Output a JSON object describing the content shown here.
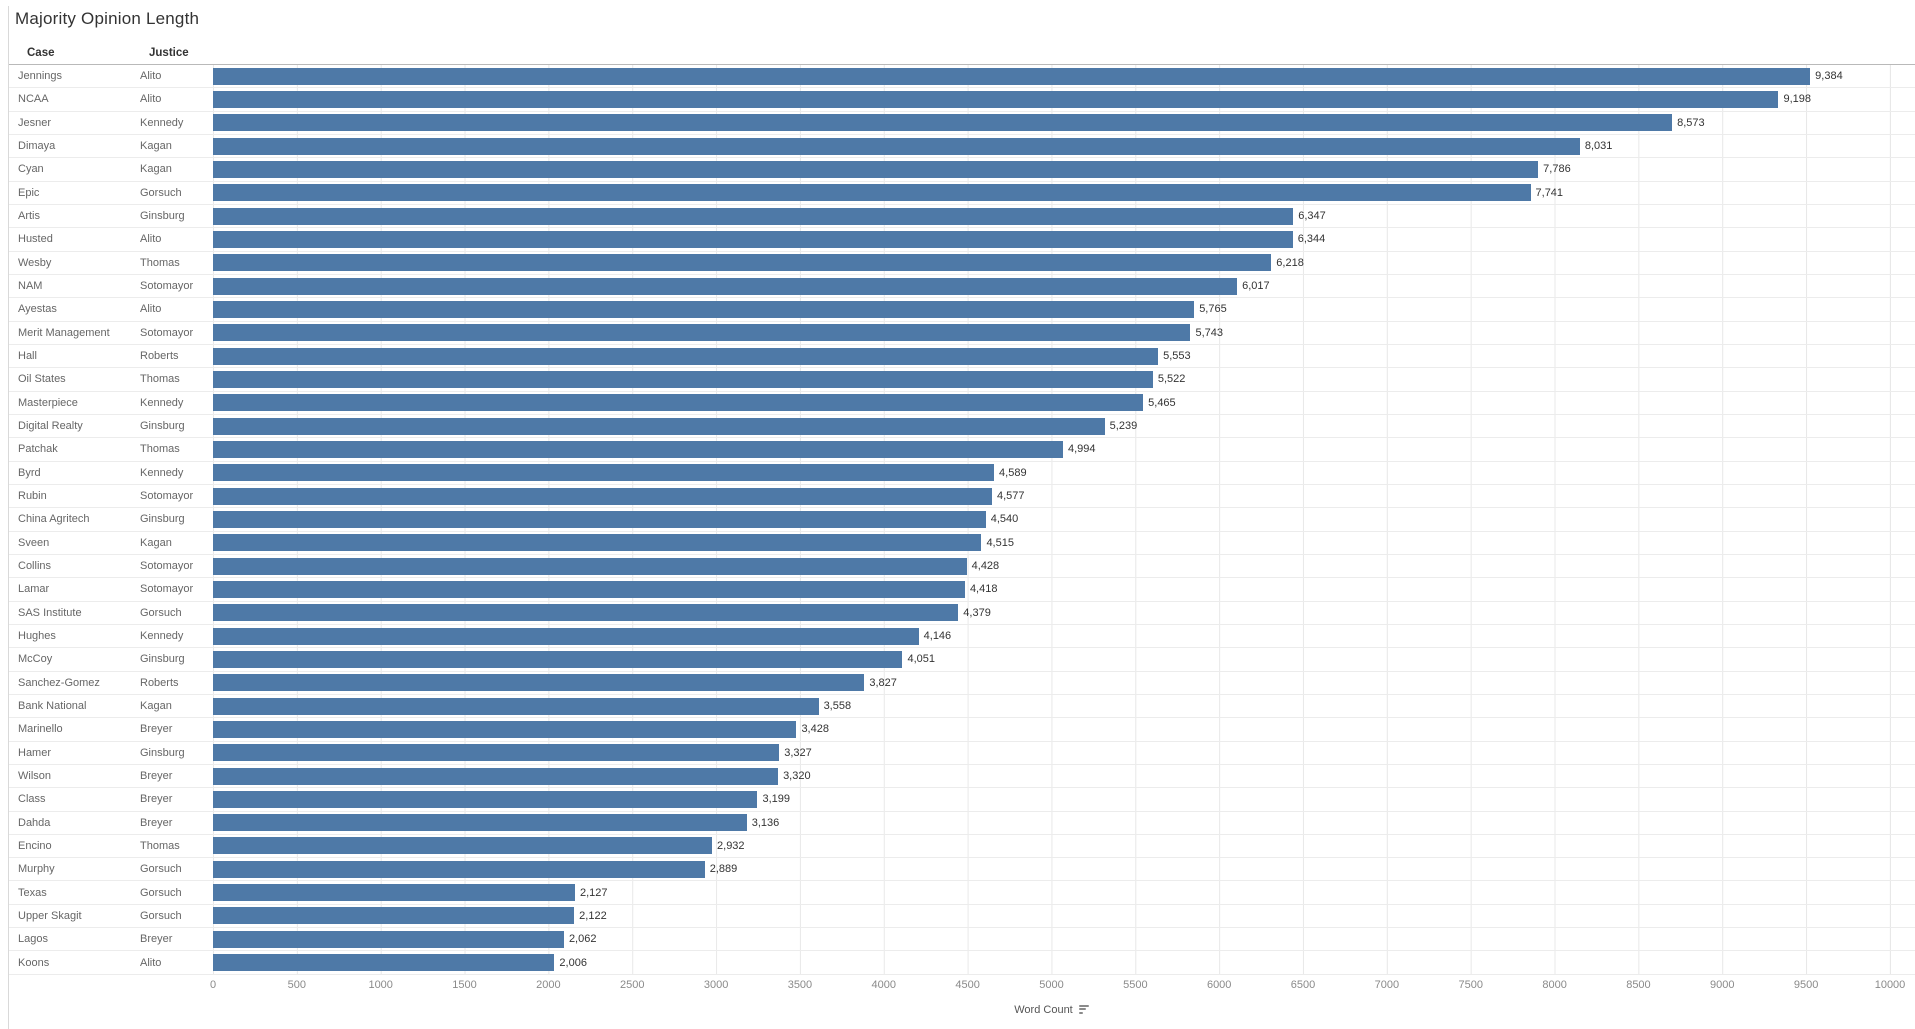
{
  "title": "Majority Opinion Length",
  "columns": {
    "case": "Case",
    "justice": "Justice"
  },
  "colors": {
    "bar": "#4e79a7",
    "gridline": "#e8e8e8"
  },
  "axis": {
    "label": "Word Count",
    "min": 0,
    "max": 10000,
    "tick_step": 500,
    "ticks": [
      0,
      500,
      1000,
      1500,
      2000,
      2500,
      3000,
      3500,
      4000,
      4500,
      5000,
      5500,
      6000,
      6500,
      7000,
      7500,
      8000,
      8500,
      9000,
      9500,
      10000
    ]
  },
  "chart_data": {
    "type": "bar",
    "orientation": "horizontal",
    "title": "Majority Opinion Length",
    "xlabel": "Word Count",
    "ylabel": "",
    "xlim": [
      0,
      10000
    ],
    "grid": true,
    "sort": "descending",
    "rows": [
      {
        "case": "Jennings",
        "justice": "Alito",
        "value": 9384,
        "label": "9,384"
      },
      {
        "case": "NCAA",
        "justice": "Alito",
        "value": 9198,
        "label": "9,198"
      },
      {
        "case": "Jesner",
        "justice": "Kennedy",
        "value": 8573,
        "label": "8,573"
      },
      {
        "case": "Dimaya",
        "justice": "Kagan",
        "value": 8031,
        "label": "8,031"
      },
      {
        "case": "Cyan",
        "justice": "Kagan",
        "value": 7786,
        "label": "7,786"
      },
      {
        "case": "Epic",
        "justice": "Gorsuch",
        "value": 7741,
        "label": "7,741"
      },
      {
        "case": "Artis",
        "justice": "Ginsburg",
        "value": 6347,
        "label": "6,347"
      },
      {
        "case": "Husted",
        "justice": "Alito",
        "value": 6344,
        "label": "6,344"
      },
      {
        "case": "Wesby",
        "justice": "Thomas",
        "value": 6218,
        "label": "6,218"
      },
      {
        "case": "NAM",
        "justice": "Sotomayor",
        "value": 6017,
        "label": "6,017"
      },
      {
        "case": "Ayestas",
        "justice": "Alito",
        "value": 5765,
        "label": "5,765"
      },
      {
        "case": "Merit Management",
        "justice": "Sotomayor",
        "value": 5743,
        "label": "5,743"
      },
      {
        "case": "Hall",
        "justice": "Roberts",
        "value": 5553,
        "label": "5,553"
      },
      {
        "case": "Oil States",
        "justice": "Thomas",
        "value": 5522,
        "label": "5,522"
      },
      {
        "case": "Masterpiece",
        "justice": "Kennedy",
        "value": 5465,
        "label": "5,465"
      },
      {
        "case": "Digital Realty",
        "justice": "Ginsburg",
        "value": 5239,
        "label": "5,239"
      },
      {
        "case": "Patchak",
        "justice": "Thomas",
        "value": 4994,
        "label": "4,994"
      },
      {
        "case": "Byrd",
        "justice": "Kennedy",
        "value": 4589,
        "label": "4,589"
      },
      {
        "case": "Rubin",
        "justice": "Sotomayor",
        "value": 4577,
        "label": "4,577"
      },
      {
        "case": "China Agritech",
        "justice": "Ginsburg",
        "value": 4540,
        "label": "4,540"
      },
      {
        "case": "Sveen",
        "justice": "Kagan",
        "value": 4515,
        "label": "4,515"
      },
      {
        "case": "Collins",
        "justice": "Sotomayor",
        "value": 4428,
        "label": "4,428"
      },
      {
        "case": "Lamar",
        "justice": "Sotomayor",
        "value": 4418,
        "label": "4,418"
      },
      {
        "case": "SAS Institute",
        "justice": "Gorsuch",
        "value": 4379,
        "label": "4,379"
      },
      {
        "case": "Hughes",
        "justice": "Kennedy",
        "value": 4146,
        "label": "4,146"
      },
      {
        "case": "McCoy",
        "justice": "Ginsburg",
        "value": 4051,
        "label": "4,051"
      },
      {
        "case": "Sanchez-Gomez",
        "justice": "Roberts",
        "value": 3827,
        "label": "3,827"
      },
      {
        "case": "Bank National",
        "justice": "Kagan",
        "value": 3558,
        "label": "3,558"
      },
      {
        "case": "Marinello",
        "justice": "Breyer",
        "value": 3428,
        "label": "3,428"
      },
      {
        "case": "Hamer",
        "justice": "Ginsburg",
        "value": 3327,
        "label": "3,327"
      },
      {
        "case": "Wilson",
        "justice": "Breyer",
        "value": 3320,
        "label": "3,320"
      },
      {
        "case": "Class",
        "justice": "Breyer",
        "value": 3199,
        "label": "3,199"
      },
      {
        "case": "Dahda",
        "justice": "Breyer",
        "value": 3136,
        "label": "3,136"
      },
      {
        "case": "Encino",
        "justice": "Thomas",
        "value": 2932,
        "label": "2,932"
      },
      {
        "case": "Murphy",
        "justice": "Gorsuch",
        "value": 2889,
        "label": "2,889"
      },
      {
        "case": "Texas",
        "justice": "Gorsuch",
        "value": 2127,
        "label": "2,127"
      },
      {
        "case": "Upper Skagit",
        "justice": "Gorsuch",
        "value": 2122,
        "label": "2,122"
      },
      {
        "case": "Lagos",
        "justice": "Breyer",
        "value": 2062,
        "label": "2,062"
      },
      {
        "case": "Koons",
        "justice": "Alito",
        "value": 2006,
        "label": "2,006"
      }
    ]
  }
}
